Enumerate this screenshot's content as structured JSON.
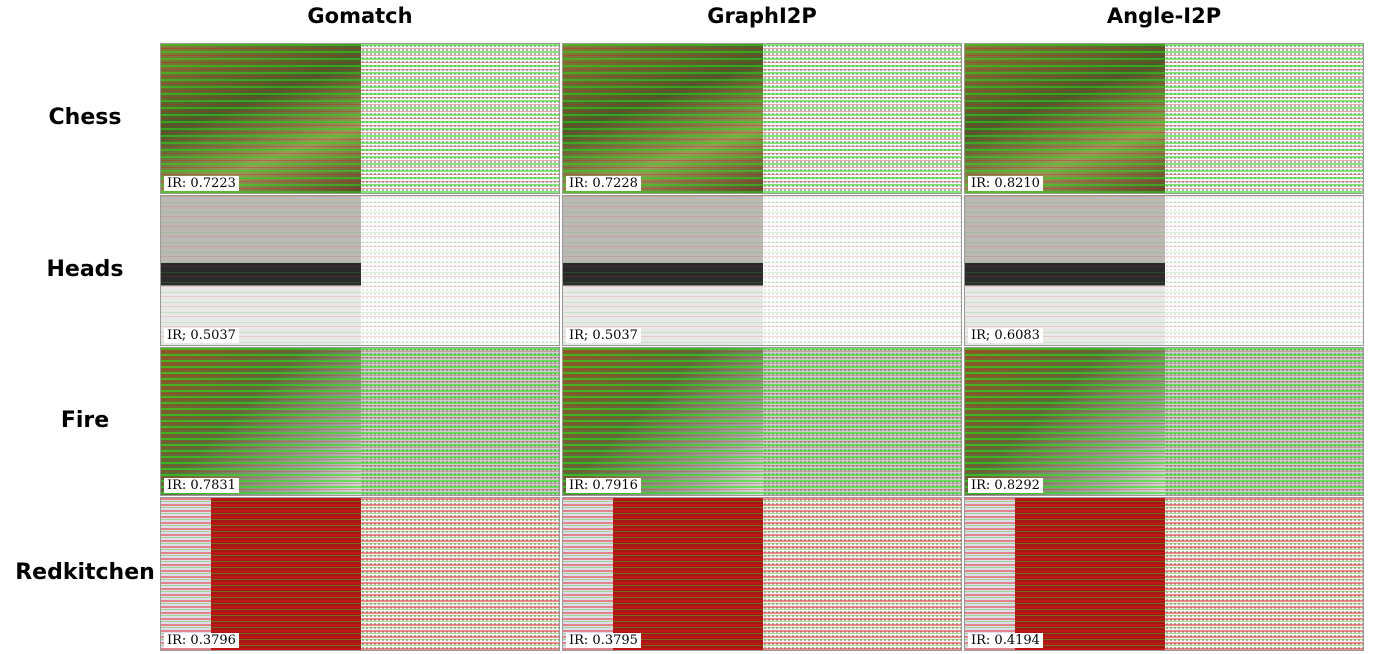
{
  "columns": [
    "Gomatch",
    "GraphI2P",
    "Angle-I2P"
  ],
  "rows": [
    {
      "label": "Chess",
      "cells": [
        "IR: 0.7223",
        "IR: 0.7228",
        "IR: 0.8210"
      ]
    },
    {
      "label": "Heads",
      "cells": [
        "IR; 0.5037",
        "IR; 0.5037",
        "IR; 0.6083"
      ]
    },
    {
      "label": "Fire",
      "cells": [
        "IR: 0.7831",
        "IR: 0.7916",
        "IR: 0.8292"
      ]
    },
    {
      "label": "Redkitchen",
      "cells": [
        "IR: 0.3796",
        "IR: 0.3795",
        "IR: 0.4194"
      ]
    }
  ]
}
